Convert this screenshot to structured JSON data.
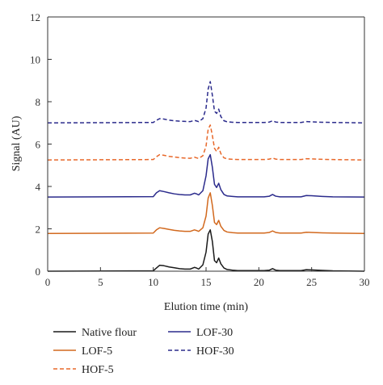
{
  "chart_data": {
    "type": "line",
    "xlabel": "Elution time (min)",
    "ylabel": "Signal (AU)",
    "xlim": [
      0,
      30
    ],
    "ylim": [
      0,
      12
    ],
    "x_ticks": [
      0,
      5,
      10,
      15,
      20,
      25,
      30
    ],
    "y_ticks": [
      0,
      2,
      4,
      6,
      8,
      10,
      12
    ],
    "grid": false,
    "legend_position": "bottom",
    "series": [
      {
        "name": "Native flour",
        "color": "#1a1a1a",
        "dash": "solid",
        "x": [
          0,
          10.0,
          10.3,
          10.6,
          11.0,
          11.5,
          12.0,
          12.5,
          13.0,
          13.5,
          13.9,
          14.1,
          14.3,
          14.7,
          15.0,
          15.2,
          15.4,
          15.6,
          15.8,
          16.0,
          16.2,
          16.4,
          16.7,
          17.0,
          17.5,
          18.0,
          20.5,
          21.0,
          21.3,
          21.6,
          22.0,
          24.0,
          24.5,
          25.0,
          26.0,
          27.0,
          30
        ],
        "y": [
          0,
          0.02,
          0.15,
          0.28,
          0.26,
          0.2,
          0.16,
          0.12,
          0.1,
          0.1,
          0.18,
          0.15,
          0.1,
          0.3,
          0.9,
          1.75,
          1.95,
          1.4,
          0.5,
          0.4,
          0.62,
          0.35,
          0.15,
          0.08,
          0.05,
          0.03,
          0.03,
          0.05,
          0.12,
          0.05,
          0.03,
          0.03,
          0.07,
          0.06,
          0.04,
          0.02,
          0.0
        ]
      },
      {
        "name": "LOF-5",
        "color": "#d2691e",
        "dash": "solid",
        "x": [
          0,
          10.0,
          10.3,
          10.6,
          11.0,
          11.5,
          12.0,
          12.5,
          13.0,
          13.5,
          13.9,
          14.1,
          14.3,
          14.7,
          15.0,
          15.2,
          15.4,
          15.6,
          15.8,
          16.0,
          16.2,
          16.4,
          16.7,
          17.0,
          17.5,
          18.0,
          20.5,
          21.0,
          21.3,
          21.6,
          22.0,
          24.0,
          24.5,
          25.0,
          26.0,
          27.0,
          30
        ],
        "y": [
          1.78,
          1.8,
          1.95,
          2.05,
          2.02,
          1.97,
          1.93,
          1.9,
          1.88,
          1.88,
          1.95,
          1.92,
          1.88,
          2.05,
          2.6,
          3.45,
          3.7,
          3.1,
          2.3,
          2.2,
          2.4,
          2.12,
          1.92,
          1.85,
          1.82,
          1.8,
          1.8,
          1.83,
          1.9,
          1.83,
          1.8,
          1.8,
          1.84,
          1.83,
          1.81,
          1.8,
          1.78
        ]
      },
      {
        "name": "HOF-5",
        "color": "#e8682a",
        "dash": "dashed",
        "x": [
          0,
          10.0,
          10.3,
          10.6,
          11.0,
          11.5,
          12.0,
          12.5,
          13.0,
          13.5,
          13.9,
          14.1,
          14.3,
          14.7,
          15.0,
          15.2,
          15.4,
          15.6,
          15.8,
          16.0,
          16.2,
          16.4,
          16.7,
          17.0,
          17.5,
          18.0,
          20.5,
          21.0,
          21.3,
          21.6,
          22.0,
          24.0,
          24.5,
          25.0,
          26.0,
          27.0,
          30
        ],
        "y": [
          5.25,
          5.27,
          5.4,
          5.5,
          5.47,
          5.42,
          5.39,
          5.36,
          5.34,
          5.33,
          5.38,
          5.35,
          5.32,
          5.45,
          5.9,
          6.7,
          6.9,
          6.4,
          5.8,
          5.65,
          5.85,
          5.55,
          5.35,
          5.3,
          5.28,
          5.27,
          5.27,
          5.29,
          5.34,
          5.29,
          5.27,
          5.27,
          5.31,
          5.3,
          5.28,
          5.27,
          5.25
        ]
      },
      {
        "name": "LOF-30",
        "color": "#2b2b8c",
        "dash": "solid",
        "x": [
          0,
          10.0,
          10.3,
          10.6,
          11.0,
          11.5,
          12.0,
          12.5,
          13.0,
          13.5,
          13.9,
          14.1,
          14.3,
          14.7,
          15.0,
          15.2,
          15.4,
          15.6,
          15.8,
          16.0,
          16.2,
          16.4,
          16.7,
          17.0,
          17.5,
          18.0,
          20.5,
          21.0,
          21.3,
          21.6,
          22.0,
          24.0,
          24.5,
          25.0,
          26.0,
          27.0,
          30
        ],
        "y": [
          3.5,
          3.52,
          3.7,
          3.8,
          3.76,
          3.7,
          3.65,
          3.62,
          3.6,
          3.6,
          3.68,
          3.65,
          3.6,
          3.8,
          4.5,
          5.3,
          5.5,
          4.9,
          4.1,
          3.95,
          4.15,
          3.85,
          3.62,
          3.55,
          3.53,
          3.51,
          3.51,
          3.54,
          3.62,
          3.54,
          3.51,
          3.51,
          3.57,
          3.56,
          3.53,
          3.51,
          3.5
        ]
      },
      {
        "name": "HOF-30",
        "color": "#2b2b8c",
        "dash": "dashed",
        "x": [
          0,
          10.0,
          10.3,
          10.6,
          11.0,
          11.5,
          12.0,
          12.5,
          13.0,
          13.5,
          13.9,
          14.1,
          14.3,
          14.7,
          15.0,
          15.2,
          15.4,
          15.6,
          15.8,
          16.0,
          16.2,
          16.4,
          16.7,
          17.0,
          17.5,
          18.0,
          20.5,
          21.0,
          21.3,
          21.6,
          22.0,
          24.0,
          24.5,
          25.0,
          26.0,
          27.0,
          30
        ],
        "y": [
          7.0,
          7.02,
          7.12,
          7.2,
          7.18,
          7.13,
          7.1,
          7.08,
          7.07,
          7.06,
          7.12,
          7.09,
          7.06,
          7.2,
          7.7,
          8.6,
          8.95,
          8.3,
          7.55,
          7.45,
          7.65,
          7.3,
          7.1,
          7.05,
          7.03,
          7.02,
          7.02,
          7.04,
          7.1,
          7.04,
          7.02,
          7.02,
          7.06,
          7.05,
          7.03,
          7.02,
          7.0
        ]
      }
    ]
  }
}
